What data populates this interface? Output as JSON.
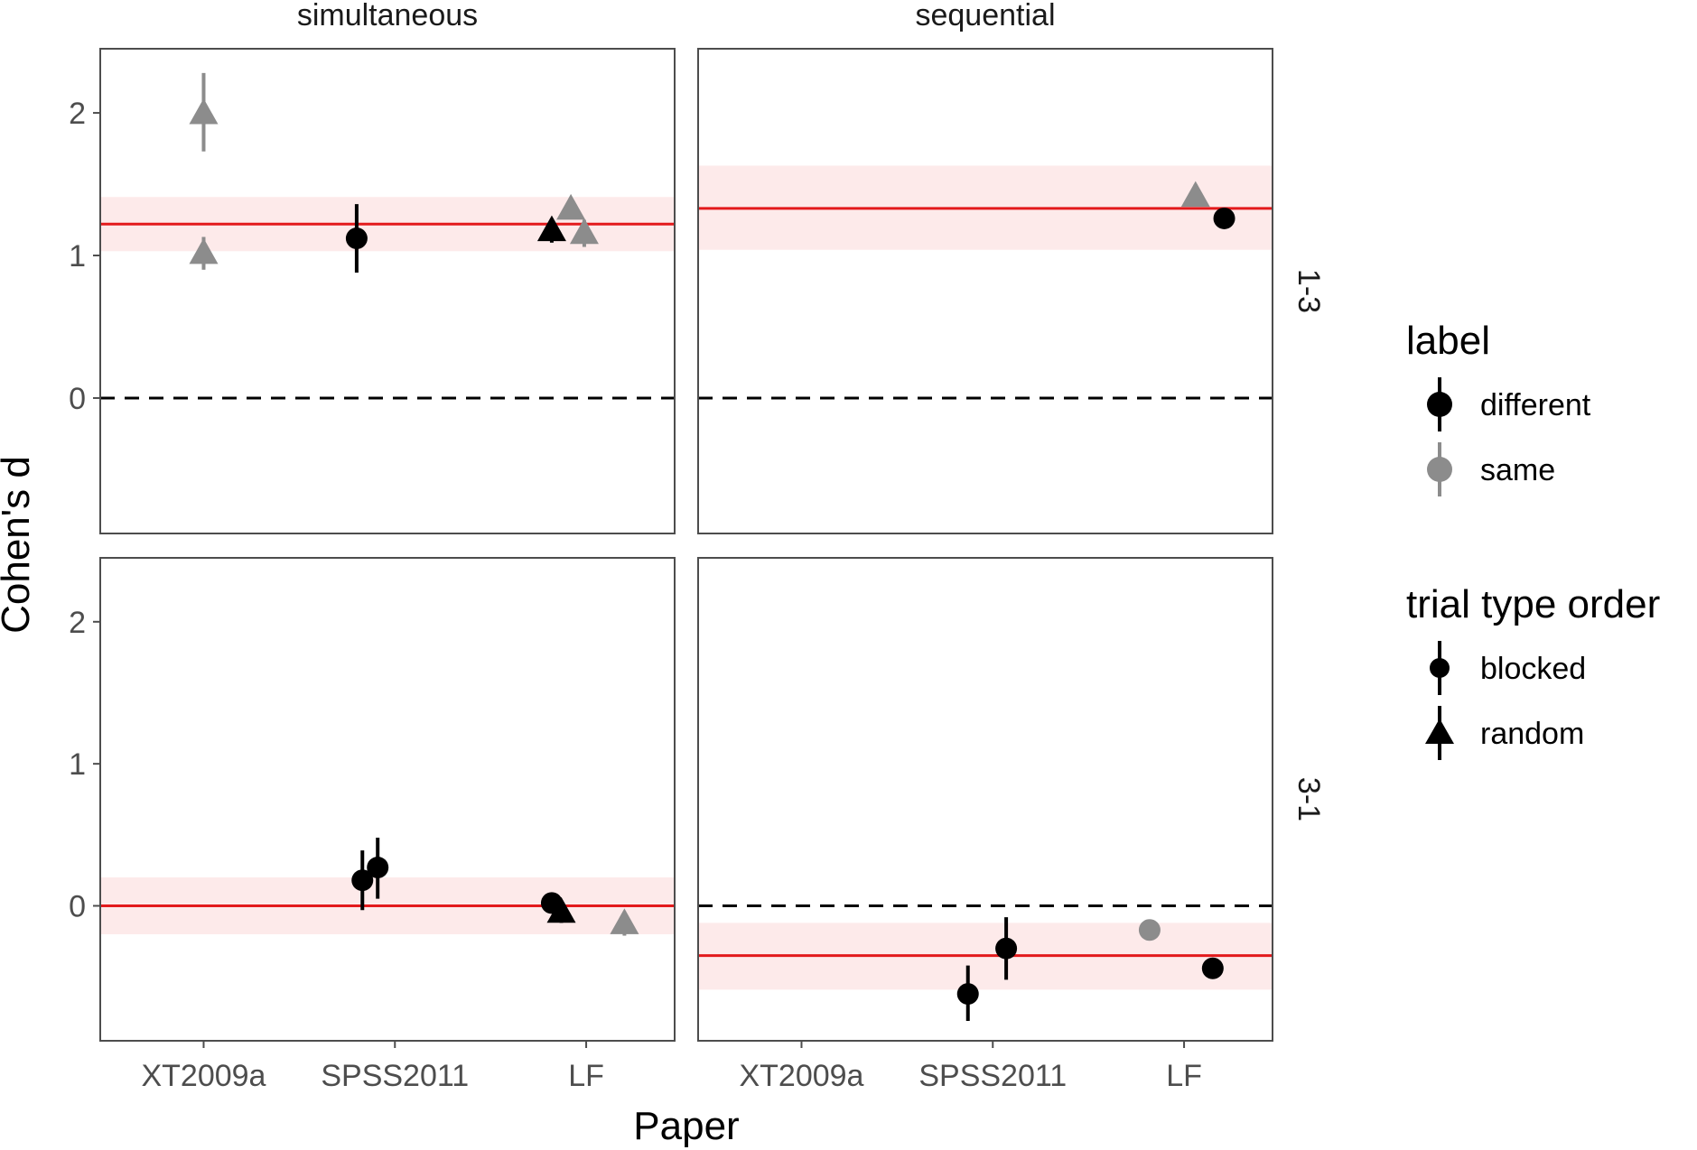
{
  "chart_data": {
    "type": "scatter",
    "xlabel": "Paper",
    "ylabel": "Cohen's d",
    "categories": [
      "XT2009a",
      "SPSS2011",
      "LF"
    ],
    "ylim": [
      -0.95,
      2.45
    ],
    "yticks": [
      0,
      1,
      2
    ],
    "col_facets": [
      "simultaneous",
      "sequential"
    ],
    "row_facets": [
      "1-3",
      "3-1"
    ],
    "colors": {
      "different": "#000000",
      "same": "#8c8c8c",
      "mean_line": "#e31a1c",
      "ci_band": "#fdeaea",
      "zero_line": "#000000"
    },
    "legend": {
      "position": "right",
      "groups": [
        {
          "title": "label",
          "items": [
            {
              "label": "different",
              "shape": "circle",
              "color": "#000000"
            },
            {
              "label": "same",
              "shape": "circle",
              "color": "#8c8c8c"
            }
          ]
        },
        {
          "title": "trial type order",
          "items": [
            {
              "label": "blocked",
              "shape": "circle",
              "color": "#000000"
            },
            {
              "label": "random",
              "shape": "triangle",
              "color": "#000000"
            }
          ]
        }
      ]
    },
    "panels": [
      {
        "col": "simultaneous",
        "row": "1-3",
        "mean": 1.22,
        "ci": [
          1.03,
          1.41
        ],
        "points": [
          {
            "paper": "XT2009a",
            "offset": 0.0,
            "y": 2.0,
            "lo": 1.73,
            "hi": 2.28,
            "label": "same",
            "order": "random"
          },
          {
            "paper": "XT2009a",
            "offset": 0.0,
            "y": 1.02,
            "lo": 0.9,
            "hi": 1.13,
            "label": "same",
            "order": "random"
          },
          {
            "paper": "SPSS2011",
            "offset": -0.2,
            "y": 1.12,
            "lo": 0.88,
            "hi": 1.36,
            "label": "different",
            "order": "blocked"
          },
          {
            "paper": "LF",
            "offset": -0.18,
            "y": 1.18,
            "lo": 1.09,
            "hi": 1.26,
            "label": "different",
            "order": "random"
          },
          {
            "paper": "LF",
            "offset": -0.08,
            "y": 1.33,
            "lo": 1.27,
            "hi": 1.4,
            "label": "same",
            "order": "random"
          },
          {
            "paper": "LF",
            "offset": -0.01,
            "y": 1.16,
            "lo": 1.06,
            "hi": 1.25,
            "label": "same",
            "order": "random"
          }
        ]
      },
      {
        "col": "sequential",
        "row": "1-3",
        "mean": 1.33,
        "ci": [
          1.04,
          1.63
        ],
        "points": [
          {
            "paper": "LF",
            "offset": 0.06,
            "y": 1.42,
            "lo": 1.35,
            "hi": 1.5,
            "label": "same",
            "order": "random"
          },
          {
            "paper": "LF",
            "offset": 0.21,
            "y": 1.26,
            "lo": 1.21,
            "hi": 1.3,
            "label": "different",
            "order": "blocked"
          }
        ]
      },
      {
        "col": "simultaneous",
        "row": "3-1",
        "mean": 0.0,
        "ci": [
          -0.2,
          0.2
        ],
        "points": [
          {
            "paper": "SPSS2011",
            "offset": -0.17,
            "y": 0.18,
            "lo": -0.03,
            "hi": 0.39,
            "label": "different",
            "order": "blocked"
          },
          {
            "paper": "SPSS2011",
            "offset": -0.09,
            "y": 0.27,
            "lo": 0.05,
            "hi": 0.48,
            "label": "different",
            "order": "blocked"
          },
          {
            "paper": "LF",
            "offset": -0.18,
            "y": 0.02,
            "lo": -0.04,
            "hi": 0.07,
            "label": "different",
            "order": "blocked"
          },
          {
            "paper": "LF",
            "offset": -0.13,
            "y": -0.04,
            "lo": -0.12,
            "hi": 0.03,
            "label": "different",
            "order": "random"
          },
          {
            "paper": "LF",
            "offset": 0.2,
            "y": -0.12,
            "lo": -0.21,
            "hi": -0.04,
            "label": "same",
            "order": "random"
          }
        ]
      },
      {
        "col": "sequential",
        "row": "3-1",
        "mean": -0.35,
        "ci": [
          -0.59,
          -0.12
        ],
        "points": [
          {
            "paper": "SPSS2011",
            "offset": -0.13,
            "y": -0.62,
            "lo": -0.81,
            "hi": -0.42,
            "label": "different",
            "order": "blocked"
          },
          {
            "paper": "SPSS2011",
            "offset": 0.07,
            "y": -0.3,
            "lo": -0.52,
            "hi": -0.08,
            "label": "different",
            "order": "blocked"
          },
          {
            "paper": "LF",
            "offset": -0.18,
            "y": -0.17,
            "lo": -0.22,
            "hi": -0.12,
            "label": "same",
            "order": "blocked"
          },
          {
            "paper": "LF",
            "offset": 0.15,
            "y": -0.44,
            "lo": -0.48,
            "hi": -0.4,
            "label": "different",
            "order": "blocked"
          }
        ]
      }
    ]
  }
}
